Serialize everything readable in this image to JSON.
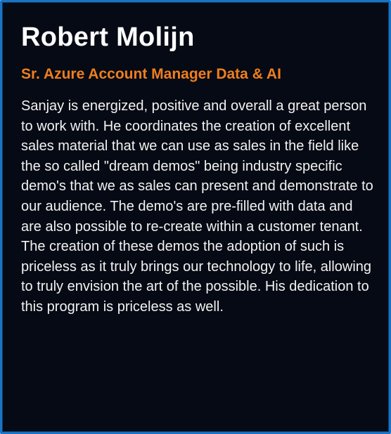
{
  "testimonial": {
    "name": "Robert Molijn",
    "role": "Sr. Azure Account Manager Data & AI",
    "quote": "Sanjay is energized, positive and overall a great person to work with. He coordinates the creation of excellent sales material that we can use as sales in the field like the so called \"dream demos\" being industry specific demo's that we as sales can present and demonstrate to our audience. The demo's are pre-filled with data and are also possible to re-create within a customer tenant. The creation of these demos the adoption of such is priceless as it truly brings our technology to life, allowing to truly envision the art of the possible. His dedication to this program is priceless as well.",
    "card_bg_color": "#060a14",
    "border_color": "#1a73c4",
    "role_color": "#f07e1e"
  }
}
